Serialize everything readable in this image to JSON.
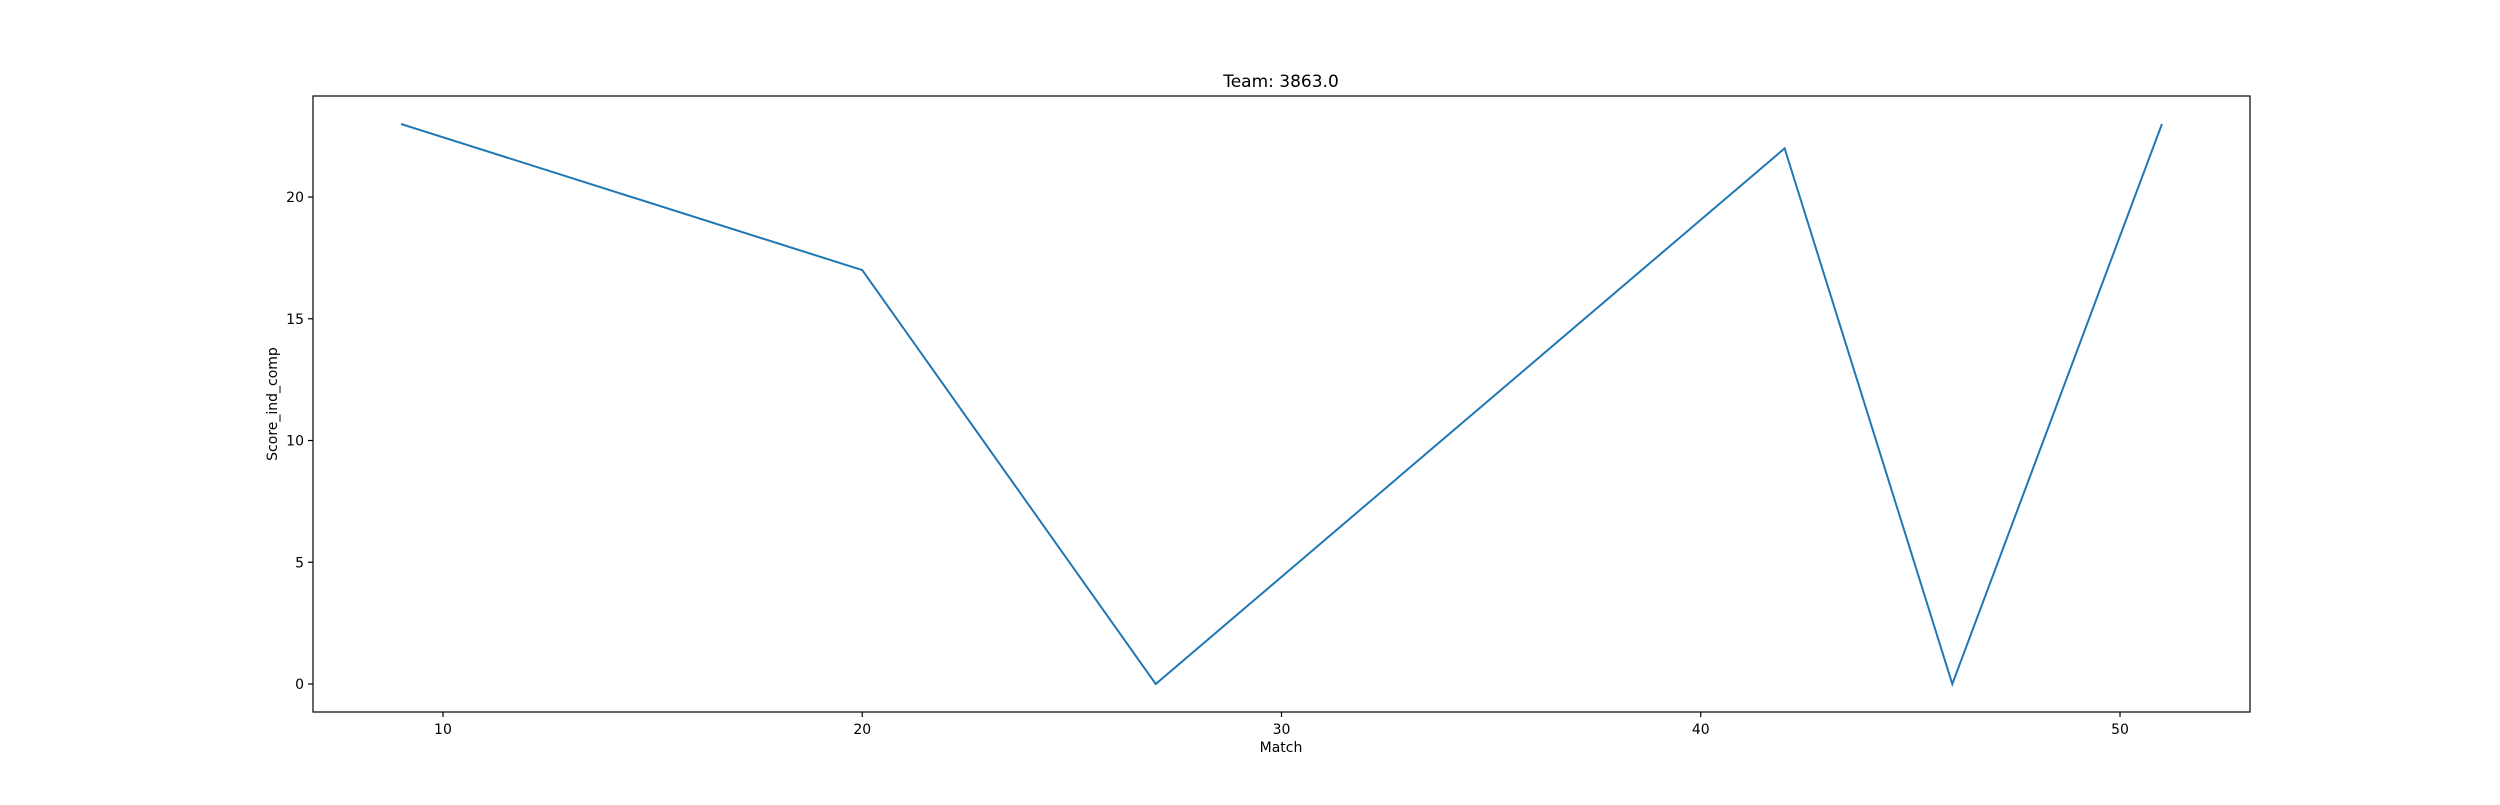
{
  "chart_data": {
    "type": "line",
    "title": "Team: 3863.0",
    "xlabel": "Match",
    "ylabel": "Score_ind_comp",
    "x": [
      9,
      20,
      27,
      42,
      46,
      51
    ],
    "series": [
      {
        "values": [
          23,
          17,
          0,
          22,
          0,
          23
        ],
        "color": "#1f77b4"
      }
    ],
    "xlim": [
      6.9,
      53.1
    ],
    "ylim": [
      -1.15,
      24.15
    ],
    "xticks": [
      10,
      20,
      30,
      40,
      50
    ],
    "yticks": [
      0,
      5,
      10,
      15,
      20
    ],
    "grid": false,
    "legend": "none"
  }
}
